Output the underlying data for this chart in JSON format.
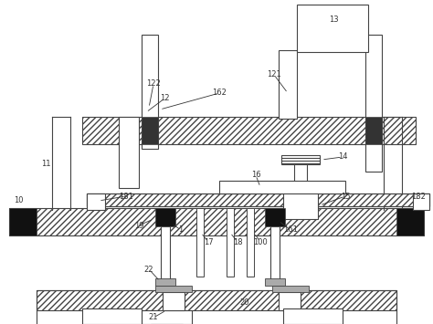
{
  "line_color": "#444444",
  "dark_fill": "#111111",
  "gray_fill": "#aaaaaa",
  "hatch_color": "#666666",
  "label_color": "#333333",
  "label_fs": 6.0
}
